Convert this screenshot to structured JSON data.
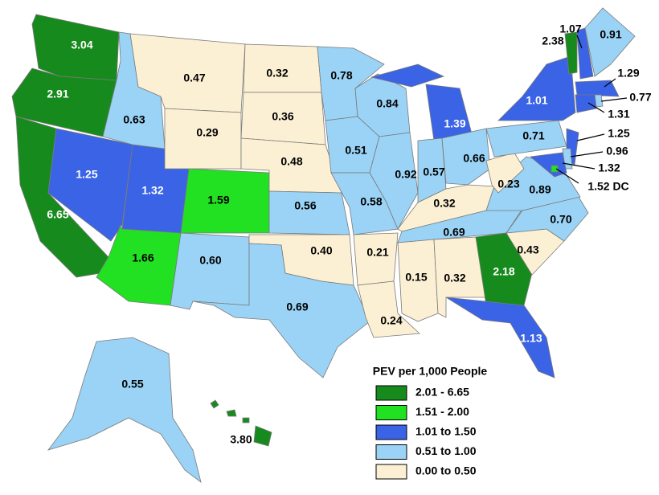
{
  "legend": {
    "title": "PEV per 1,000 People",
    "items": [
      {
        "label": "2.01 - 6.65",
        "color": "#178a1e"
      },
      {
        "label": "1.51 - 2.00",
        "color": "#22e022"
      },
      {
        "label": "1.01 to 1.50",
        "color": "#3a63e6"
      },
      {
        "label": "0.51 to 1.00",
        "color": "#9ad3f5"
      },
      {
        "label": "0.00 to 0.50",
        "color": "#fcf0d4"
      }
    ]
  },
  "regions": [
    {
      "label": "3.04",
      "color": "#178a1e"
    },
    {
      "label": "2.91",
      "color": "#178a1e"
    },
    {
      "label": "6.65",
      "color": "#178a1e"
    },
    {
      "label": "1.25",
      "color": "#3a63e6"
    },
    {
      "label": "1.32",
      "color": "#3a63e6"
    },
    {
      "label": "1.66",
      "color": "#22e022"
    },
    {
      "label": "1.59",
      "color": "#22e022"
    },
    {
      "label": "0.60",
      "color": "#9ad3f5"
    },
    {
      "label": "0.63",
      "color": "#9ad3f5"
    },
    {
      "label": "0.47",
      "color": "#fcf0d4"
    },
    {
      "label": "0.29",
      "color": "#fcf0d4"
    },
    {
      "label": "0.32",
      "color": "#fcf0d4"
    },
    {
      "label": "0.36",
      "color": "#fcf0d4"
    },
    {
      "label": "0.48",
      "color": "#fcf0d4"
    },
    {
      "label": "0.56",
      "color": "#9ad3f5"
    },
    {
      "label": "0.40",
      "color": "#fcf0d4"
    },
    {
      "label": "0.69",
      "color": "#9ad3f5"
    },
    {
      "label": "0.78",
      "color": "#9ad3f5"
    },
    {
      "label": "0.51",
      "color": "#9ad3f5"
    },
    {
      "label": "0.58",
      "color": "#9ad3f5"
    },
    {
      "label": "0.21",
      "color": "#fcf0d4"
    },
    {
      "label": "0.24",
      "color": "#fcf0d4"
    },
    {
      "label": "0.84",
      "color": "#9ad3f5"
    },
    {
      "label": "0.92",
      "color": "#9ad3f5"
    },
    {
      "label": "1.39",
      "color": "#3a63e6"
    },
    {
      "label": "0.57",
      "color": "#9ad3f5"
    },
    {
      "label": "0.66",
      "color": "#9ad3f5"
    },
    {
      "label": "0.32",
      "color": "#fcf0d4"
    },
    {
      "label": "0.69",
      "color": "#9ad3f5"
    },
    {
      "label": "0.15",
      "color": "#fcf0d4"
    },
    {
      "label": "0.32",
      "color": "#fcf0d4"
    },
    {
      "label": "2.18",
      "color": "#178a1e"
    },
    {
      "label": "1.13",
      "color": "#3a63e6"
    },
    {
      "label": "0.43",
      "color": "#fcf0d4"
    },
    {
      "label": "0.70",
      "color": "#9ad3f5"
    },
    {
      "label": "0.89",
      "color": "#9ad3f5"
    },
    {
      "label": "0.23",
      "color": "#fcf0d4"
    },
    {
      "label": "0.71",
      "color": "#9ad3f5"
    },
    {
      "label": "1.01",
      "color": "#3a63e6"
    },
    {
      "label": "2.38",
      "color": "#178a1e"
    },
    {
      "label": "1.07",
      "color": "#3a63e6"
    },
    {
      "label": "0.91",
      "color": "#9ad3f5"
    },
    {
      "label": "1.29",
      "color": "#3a63e6"
    },
    {
      "label": "0.77",
      "color": "#9ad3f5"
    },
    {
      "label": "1.31",
      "color": "#3a63e6"
    },
    {
      "label": "1.25",
      "color": "#3a63e6"
    },
    {
      "label": "0.96",
      "color": "#9ad3f5"
    },
    {
      "label": "1.32",
      "color": "#3a63e6"
    },
    {
      "label": "1.52 DC",
      "color": "#22e022"
    },
    {
      "label": "0.55",
      "color": "#9ad3f5"
    },
    {
      "label": "3.80",
      "color": "#178a1e"
    }
  ]
}
